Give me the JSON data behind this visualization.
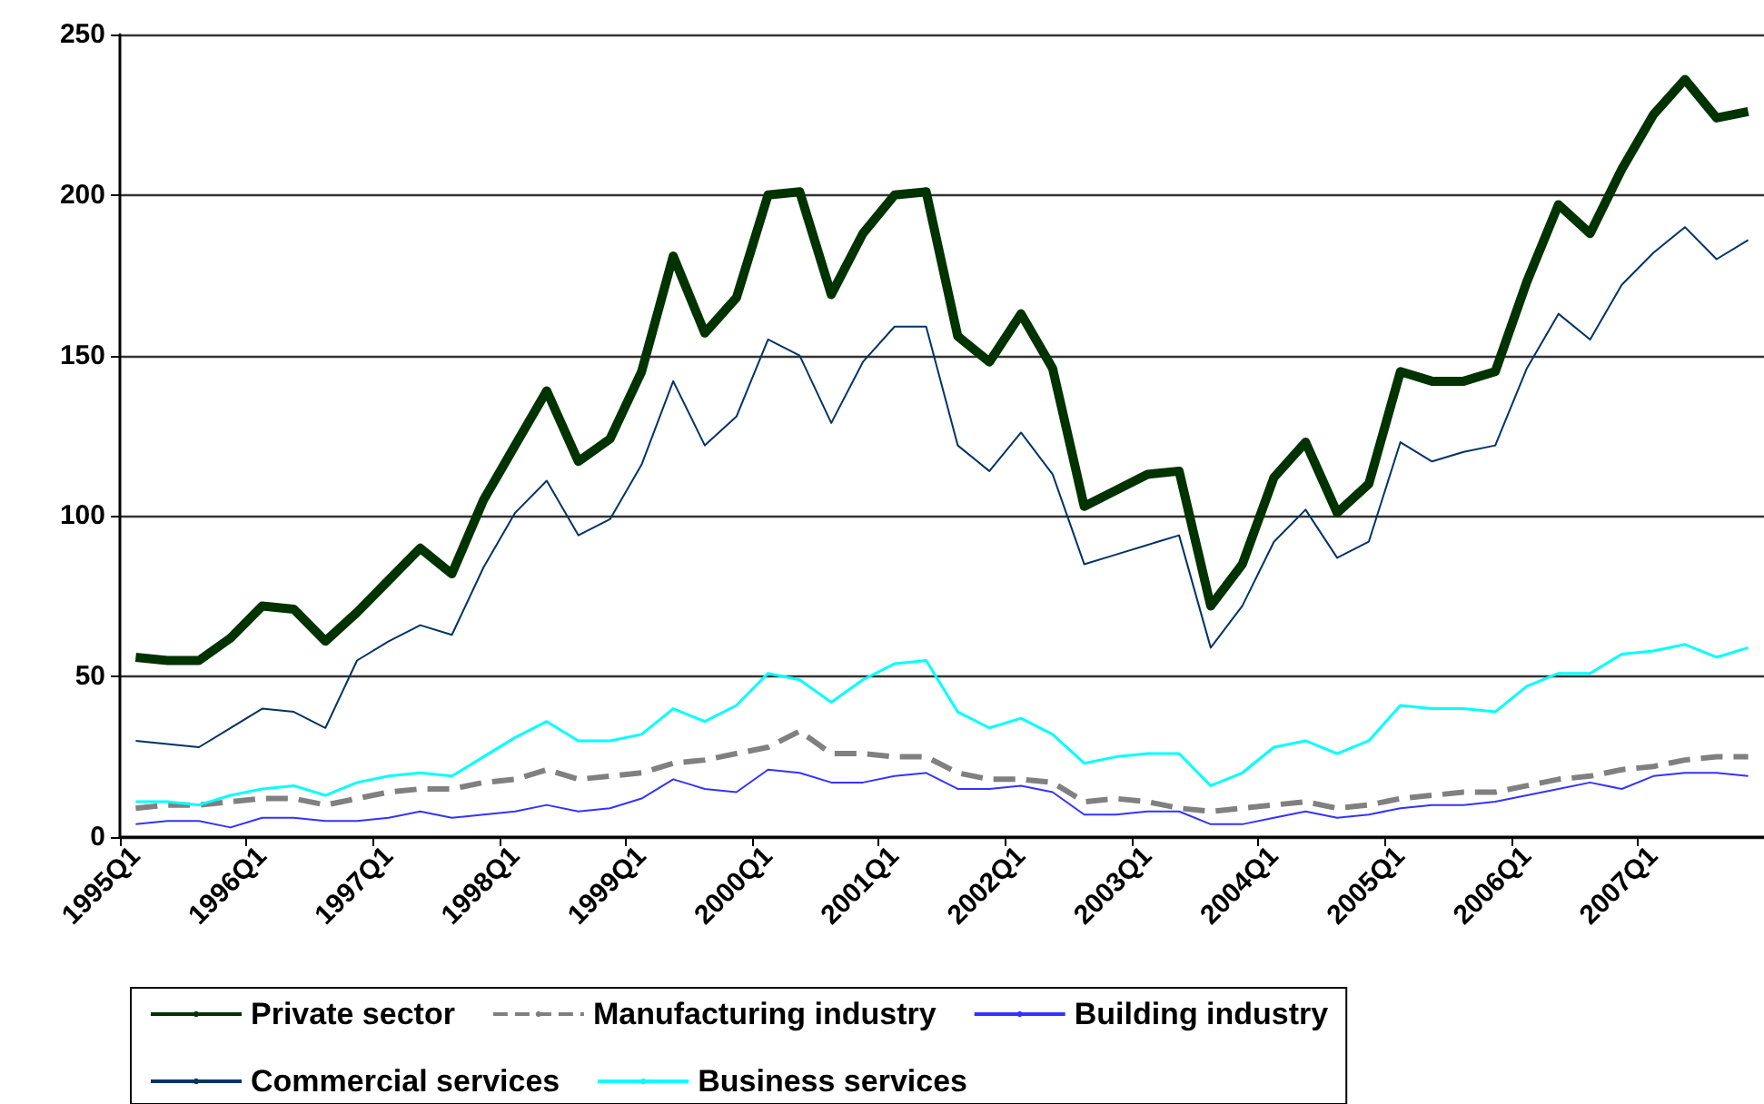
{
  "chart_data": {
    "type": "line",
    "categories": [
      "1995Q1",
      null,
      null,
      null,
      "1996Q1",
      null,
      null,
      null,
      "1997Q1",
      null,
      null,
      null,
      "1998Q1",
      null,
      null,
      null,
      "1999Q1",
      null,
      null,
      null,
      "2000Q1",
      null,
      null,
      null,
      "2001Q1",
      null,
      null,
      null,
      "2002Q1",
      null,
      null,
      null,
      "2003Q1",
      null,
      null,
      null,
      "2004Q1",
      null,
      null,
      null,
      "2005Q1",
      null,
      null,
      null,
      "2006Q1",
      null,
      null,
      null,
      "2007Q1",
      null,
      null,
      null
    ],
    "series": [
      {
        "name": "Private sector",
        "color": "#003300",
        "values": [
          56,
          55,
          55,
          62,
          72,
          71,
          61,
          70,
          80,
          90,
          82,
          105,
          122,
          139,
          117,
          124,
          145,
          181,
          157,
          168,
          200,
          201,
          169,
          188,
          200,
          201,
          156,
          148,
          163,
          146,
          103,
          108,
          113,
          114,
          72,
          85,
          112,
          123,
          101,
          110,
          145,
          142,
          142,
          145,
          173,
          197,
          188,
          208,
          225,
          236,
          224,
          226
        ]
      },
      {
        "name": "Manufacturing industry",
        "color": "#808080",
        "line_style": "dashed",
        "values": [
          9,
          10,
          10,
          11,
          12,
          12,
          10,
          12,
          14,
          15,
          15,
          17,
          18,
          21,
          18,
          19,
          20,
          23,
          24,
          26,
          28,
          33,
          26,
          26,
          25,
          25,
          20,
          18,
          18,
          17,
          11,
          12,
          11,
          9,
          8,
          9,
          10,
          11,
          9,
          10,
          12,
          13,
          14,
          14,
          16,
          18,
          19,
          21,
          22,
          24,
          25,
          25
        ]
      },
      {
        "name": "Building industry",
        "color": "#3333ff",
        "values": [
          4,
          5,
          5,
          3,
          6,
          6,
          5,
          5,
          6,
          8,
          6,
          7,
          8,
          10,
          8,
          9,
          12,
          18,
          15,
          14,
          21,
          20,
          17,
          17,
          19,
          20,
          15,
          15,
          16,
          14,
          7,
          7,
          8,
          8,
          4,
          4,
          6,
          8,
          6,
          7,
          9,
          10,
          10,
          11,
          13,
          15,
          17,
          15,
          19,
          20,
          20,
          19
        ]
      },
      {
        "name": "Commercial services",
        "color": "#003366",
        "values": [
          30,
          29,
          28,
          34,
          40,
          39,
          34,
          55,
          61,
          66,
          63,
          84,
          101,
          111,
          94,
          99,
          116,
          142,
          122,
          131,
          155,
          150,
          129,
          148,
          159,
          159,
          122,
          114,
          126,
          113,
          85,
          88,
          91,
          94,
          59,
          72,
          92,
          102,
          87,
          92,
          123,
          117,
          120,
          122,
          146,
          163,
          155,
          172,
          182,
          190,
          180,
          186
        ]
      },
      {
        "name": "Business services",
        "color": "#00ffff",
        "values": [
          11,
          11,
          10,
          13,
          15,
          16,
          13,
          17,
          19,
          20,
          19,
          25,
          31,
          36,
          30,
          30,
          32,
          40,
          36,
          41,
          51,
          49,
          42,
          49,
          54,
          55,
          39,
          34,
          37,
          32,
          23,
          25,
          26,
          26,
          16,
          20,
          28,
          30,
          26,
          30,
          41,
          40,
          40,
          39,
          47,
          51,
          51,
          57,
          58,
          60,
          56,
          59
        ]
      }
    ],
    "ylim": [
      0,
      250
    ],
    "yticks": [
      0,
      50,
      100,
      150,
      200,
      250
    ],
    "grid": "y",
    "legend": "bottom",
    "marker": "none",
    "line_style": "solid"
  }
}
